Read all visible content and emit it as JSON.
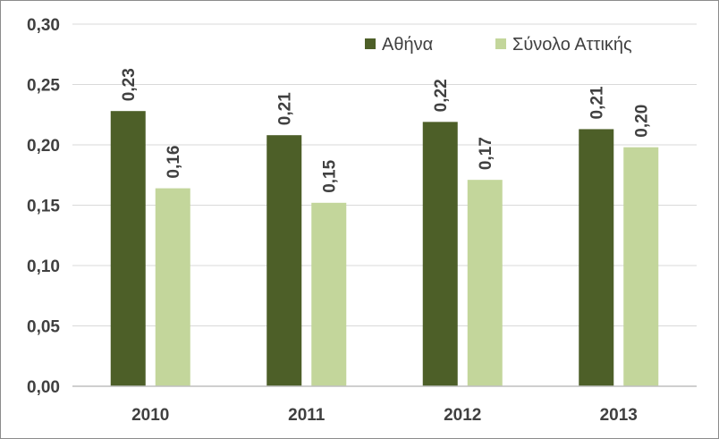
{
  "chart_data": {
    "type": "bar",
    "categories": [
      "2010",
      "2011",
      "2012",
      "2013"
    ],
    "series": [
      {
        "name": "Αθήνα",
        "values": [
          0.228,
          0.208,
          0.219,
          0.213
        ],
        "labels": [
          "0,23",
          "0,21",
          "0,22",
          "0,21"
        ],
        "color": "#4d5f28"
      },
      {
        "name": "Σύνολο Αττικής",
        "values": [
          0.164,
          0.152,
          0.171,
          0.198
        ],
        "labels": [
          "0,16",
          "0,15",
          "0,17",
          "0,20"
        ],
        "color": "#c3d69b"
      }
    ],
    "y_ticks": [
      {
        "value": 0.0,
        "label": "0,00"
      },
      {
        "value": 0.05,
        "label": "0,05"
      },
      {
        "value": 0.1,
        "label": "0,10"
      },
      {
        "value": 0.15,
        "label": "0,15"
      },
      {
        "value": 0.2,
        "label": "0,20"
      },
      {
        "value": 0.25,
        "label": "0,25"
      },
      {
        "value": 0.3,
        "label": "0,30"
      }
    ],
    "ylim": [
      0,
      0.3
    ],
    "grid": true,
    "legend_position": "top-right",
    "title": "",
    "xlabel": "",
    "ylabel": ""
  }
}
